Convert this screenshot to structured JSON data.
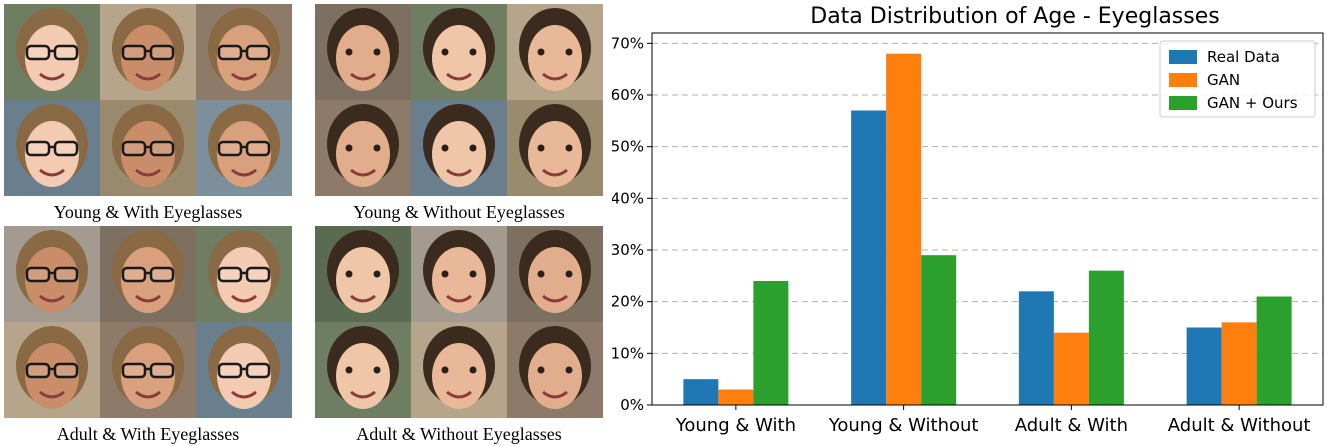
{
  "panels": [
    {
      "caption": "Young & With Eyeglasses"
    },
    {
      "caption": "Young & Without Eyeglasses"
    },
    {
      "caption": "Adult & With Eyeglasses"
    },
    {
      "caption": "Adult & Without Eyeglasses"
    }
  ],
  "colors": {
    "real": "#1f77b4",
    "gan": "#ff7f0e",
    "ours": "#2ca02c"
  },
  "chart_data": {
    "type": "bar",
    "title": "Data Distribution of Age - Eyeglasses",
    "categories": [
      "Young & With",
      "Young & Without",
      "Adult & With",
      "Adult & Without"
    ],
    "series": [
      {
        "name": "Real Data",
        "values": [
          5,
          57,
          22,
          15
        ]
      },
      {
        "name": "GAN",
        "values": [
          3,
          68,
          14,
          16
        ]
      },
      {
        "name": "GAN + Ours",
        "values": [
          24,
          29,
          26,
          21
        ]
      }
    ],
    "yticks": [
      "0%",
      "10%",
      "20%",
      "30%",
      "40%",
      "50%",
      "60%",
      "70%"
    ],
    "ylim": [
      0,
      72
    ],
    "grid": true,
    "legend_position": "top-right"
  }
}
